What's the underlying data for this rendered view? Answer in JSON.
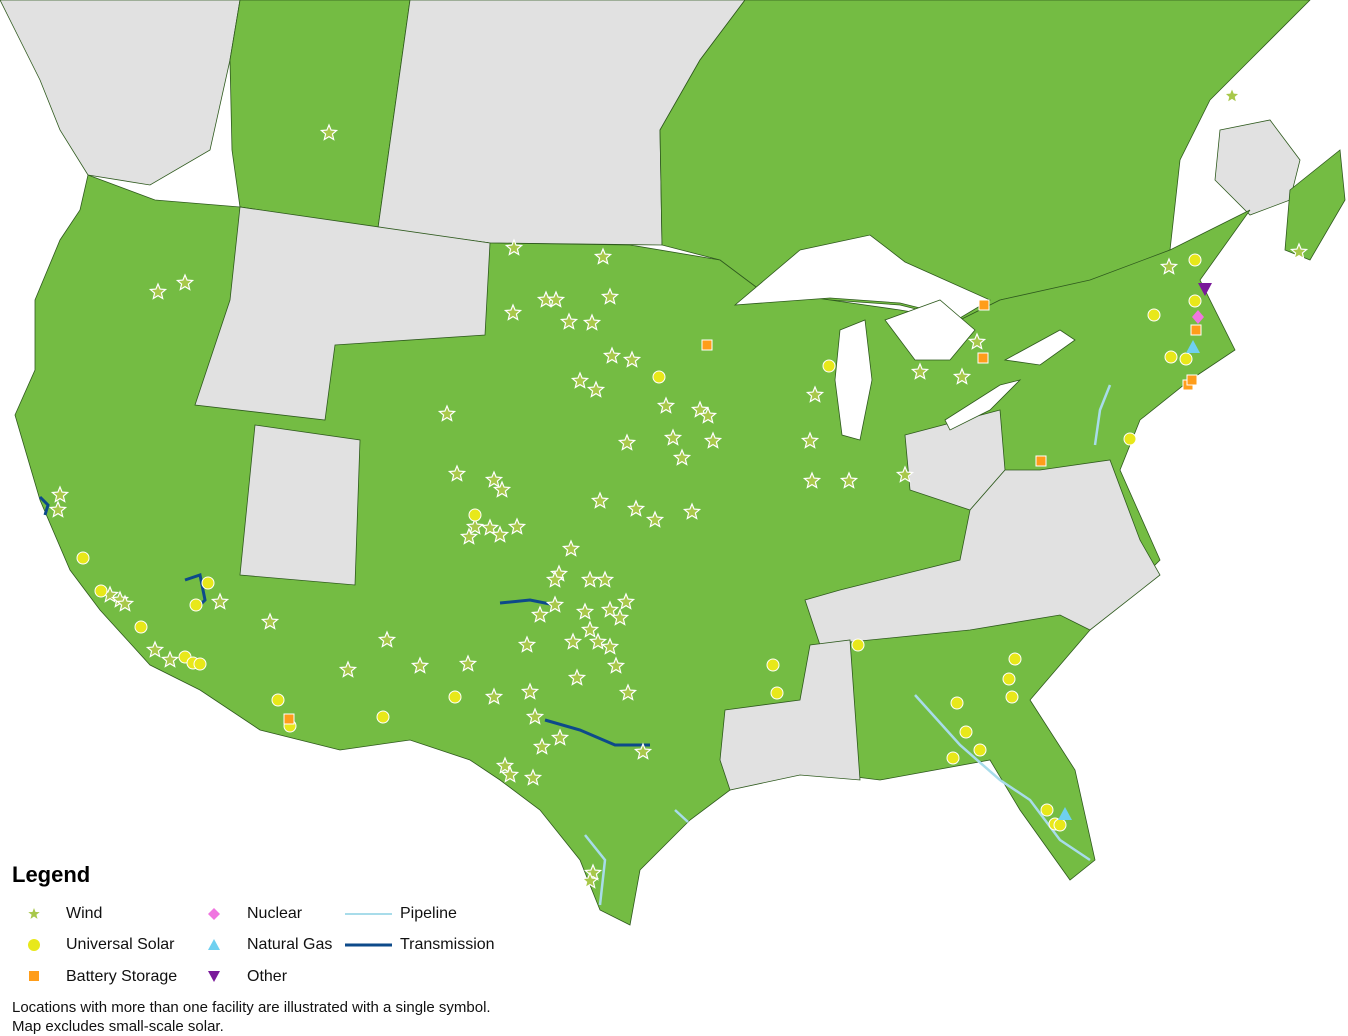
{
  "legend": {
    "title": "Legend",
    "items": [
      {
        "label": "Wind",
        "symbol": "star",
        "color": "#a8c84a"
      },
      {
        "label": "Universal Solar",
        "symbol": "circle",
        "color": "#e8e81a"
      },
      {
        "label": "Battery Storage",
        "symbol": "square",
        "color": "#ff9d1a"
      },
      {
        "label": "Nuclear",
        "symbol": "diamond",
        "color": "#f075e0"
      },
      {
        "label": "Natural Gas",
        "symbol": "triangle-up",
        "color": "#6fd0f0"
      },
      {
        "label": "Other",
        "symbol": "triangle-down",
        "color": "#7a1a9a"
      },
      {
        "label": "Pipeline",
        "symbol": "line",
        "color": "#a8dcea"
      },
      {
        "label": "Transmission",
        "symbol": "line",
        "color": "#0d4a8a"
      }
    ]
  },
  "notes": [
    "Locations with more than one facility are illustrated with a single symbol.",
    "Map excludes small-scale solar."
  ],
  "colors": {
    "included_region": "#74bc43",
    "excluded_region": "#e1e1e1",
    "water": "#ffffff",
    "border": "#2f5a1e"
  }
}
